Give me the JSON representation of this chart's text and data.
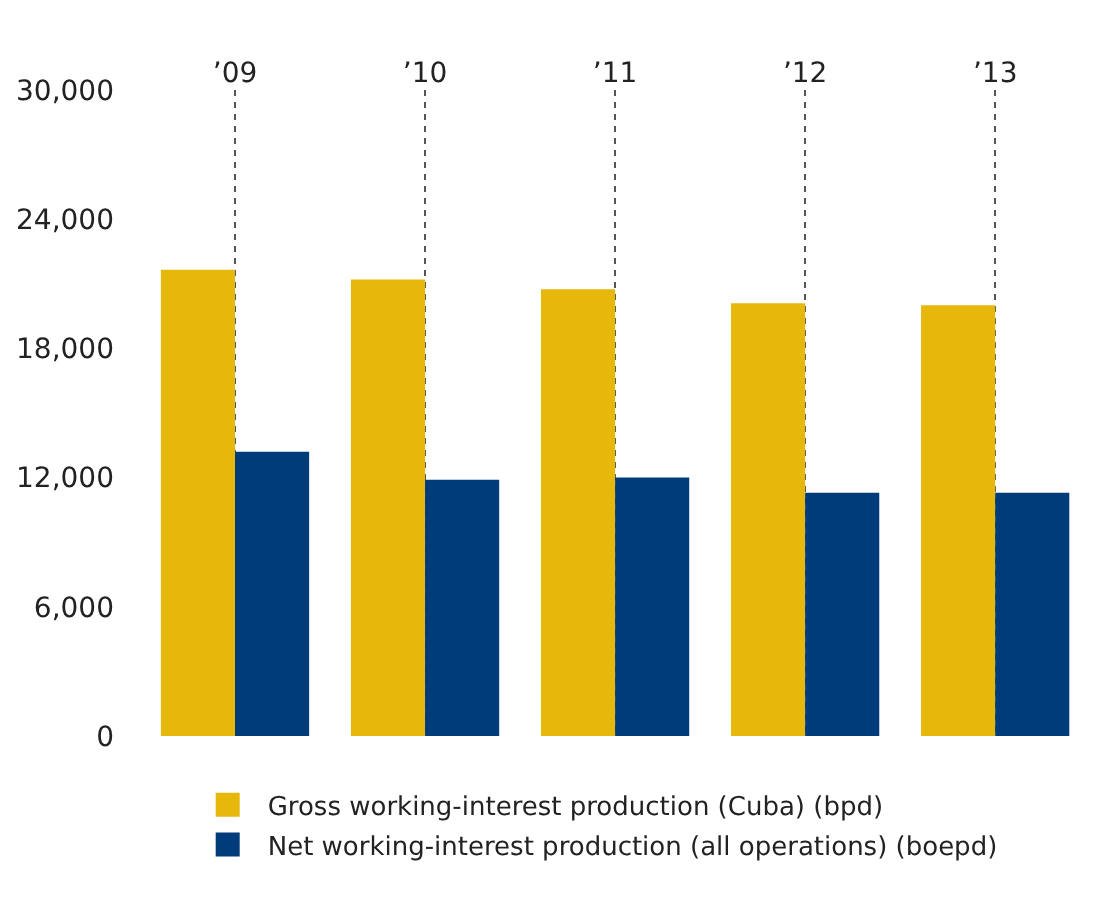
{
  "chart_data": {
    "type": "bar",
    "categories": [
      "’09",
      "’10",
      "’11",
      "’12",
      "’13"
    ],
    "series": [
      {
        "name": "Gross working-interest production (Cuba) (bpd)",
        "color": "#e6b80b",
        "values": [
          21650,
          21200,
          20750,
          20100,
          20000
        ]
      },
      {
        "name": "Net working-interest production (all operations) (boepd)",
        "color": "#003b7a",
        "values": [
          13200,
          11900,
          12000,
          11300,
          11300
        ]
      }
    ],
    "ylim": [
      0,
      30000
    ],
    "yticks": [
      {
        "value": 0,
        "label": "0"
      },
      {
        "value": 6000,
        "label": "6,000"
      },
      {
        "value": 12000,
        "label": "12,000"
      },
      {
        "value": 18000,
        "label": "18,000"
      },
      {
        "value": 24000,
        "label": "24,000"
      },
      {
        "value": 30000,
        "label": "30,000"
      }
    ],
    "grid": "x",
    "legend": "bottom"
  }
}
